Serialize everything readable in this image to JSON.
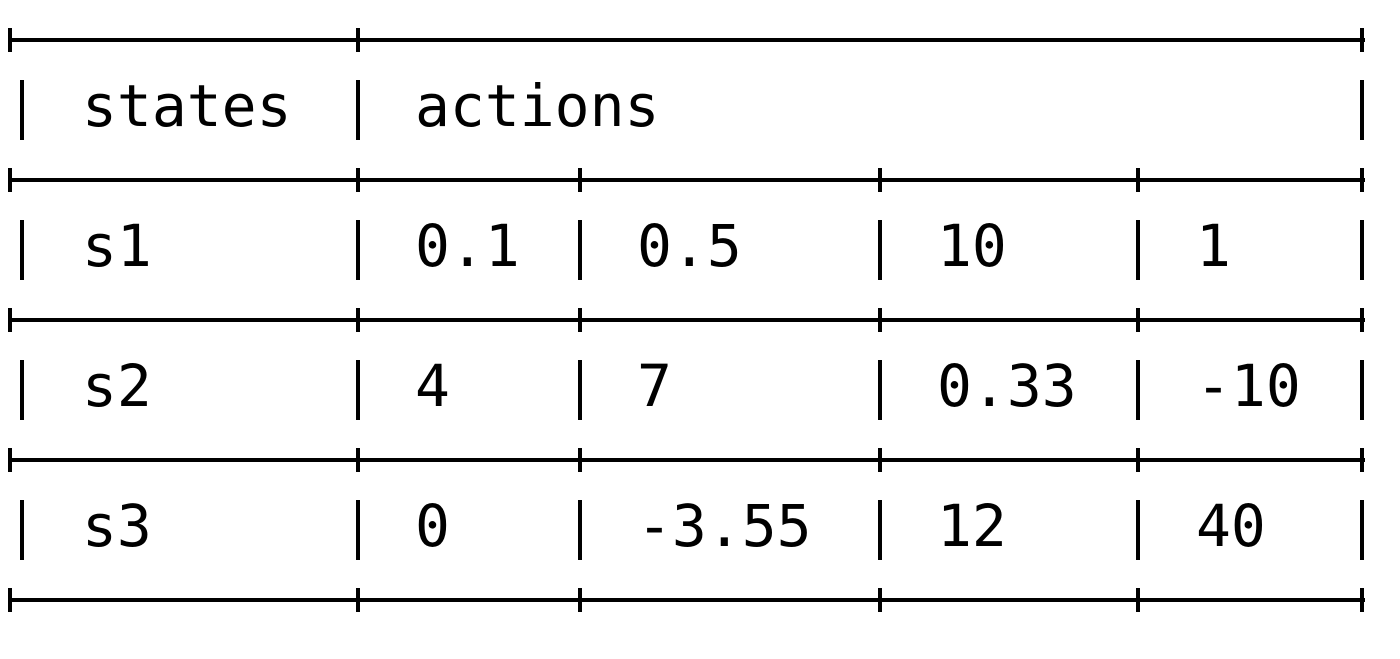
{
  "table": {
    "header": {
      "states_label": "states",
      "actions_label": "actions"
    },
    "rows": [
      {
        "state": "s1",
        "values": [
          "0.1",
          "0.5",
          "10",
          "1"
        ]
      },
      {
        "state": "s2",
        "values": [
          "4",
          "7",
          "0.33",
          "-10"
        ]
      },
      {
        "state": "s3",
        "values": [
          "0",
          "-3.55",
          "12",
          "40"
        ]
      }
    ]
  }
}
